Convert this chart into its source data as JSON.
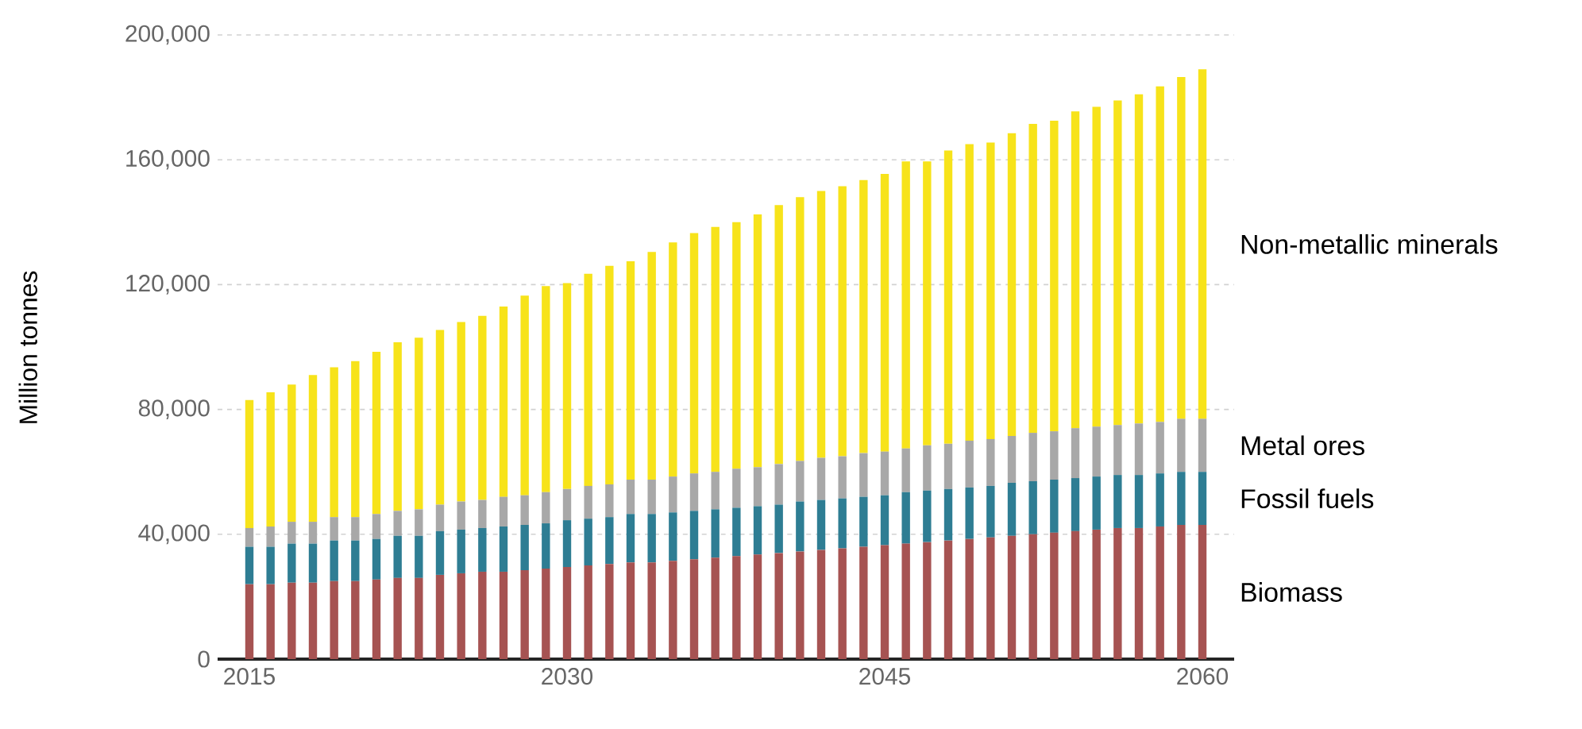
{
  "chart_data": {
    "type": "bar",
    "stacked": true,
    "ylabel": "Million tonnes",
    "x": [
      2015,
      2016,
      2017,
      2018,
      2019,
      2020,
      2021,
      2022,
      2023,
      2024,
      2025,
      2026,
      2027,
      2028,
      2029,
      2030,
      2031,
      2032,
      2033,
      2034,
      2035,
      2036,
      2037,
      2038,
      2039,
      2040,
      2041,
      2042,
      2043,
      2044,
      2045,
      2046,
      2047,
      2048,
      2049,
      2050,
      2051,
      2052,
      2053,
      2054,
      2055,
      2056,
      2057,
      2058,
      2059,
      2060
    ],
    "xlim": [
      2013.5,
      2061.5
    ],
    "xticks": [
      2015,
      2030,
      2045,
      2060
    ],
    "ylim": [
      0,
      200000
    ],
    "yticks": [
      {
        "value": 0,
        "label": "0"
      },
      {
        "value": 40000,
        "label": "40,000"
      },
      {
        "value": 80000,
        "label": "80,000"
      },
      {
        "value": 120000,
        "label": "120,000"
      },
      {
        "value": 160000,
        "label": "160,000"
      },
      {
        "value": 200000,
        "label": "200,000"
      }
    ],
    "grid": "y",
    "legend": false,
    "series": [
      {
        "name": "Biomass",
        "color": "#a65352",
        "values": [
          24000,
          24000,
          24500,
          24500,
          25000,
          25000,
          25500,
          26000,
          26000,
          27000,
          27500,
          28000,
          28000,
          28500,
          29000,
          29500,
          30000,
          30500,
          31000,
          31000,
          31500,
          32000,
          32500,
          33000,
          33500,
          34000,
          34500,
          35000,
          35500,
          36000,
          36500,
          37000,
          37500,
          38000,
          38500,
          39000,
          39500,
          40000,
          40500,
          41000,
          41500,
          42000,
          42000,
          42500,
          43000,
          43000
        ]
      },
      {
        "name": "Fossil fuels",
        "color": "#2e7d93",
        "values": [
          12000,
          12000,
          12500,
          12500,
          13000,
          13000,
          13000,
          13500,
          13500,
          14000,
          14000,
          14000,
          14500,
          14500,
          14500,
          15000,
          15000,
          15000,
          15500,
          15500,
          15500,
          15500,
          15500,
          15500,
          15500,
          15500,
          16000,
          16000,
          16000,
          16000,
          16000,
          16500,
          16500,
          16500,
          16500,
          16500,
          17000,
          17000,
          17000,
          17000,
          17000,
          17000,
          17000,
          17000,
          17000,
          17000
        ]
      },
      {
        "name": "Metal ores",
        "color": "#a8a8a8",
        "values": [
          6000,
          6500,
          7000,
          7000,
          7500,
          7500,
          8000,
          8000,
          8500,
          8500,
          9000,
          9000,
          9500,
          9500,
          10000,
          10000,
          10500,
          10500,
          11000,
          11000,
          11500,
          12000,
          12000,
          12500,
          12500,
          13000,
          13000,
          13500,
          13500,
          14000,
          14000,
          14000,
          14500,
          14500,
          15000,
          15000,
          15000,
          15500,
          15500,
          16000,
          16000,
          16000,
          16500,
          16500,
          17000,
          17000
        ]
      },
      {
        "name": "Non-metallic minerals",
        "color": "#f7e31a",
        "values": [
          41000,
          43000,
          44000,
          47000,
          48000,
          50000,
          52000,
          54000,
          55000,
          56000,
          57500,
          59000,
          61000,
          64000,
          66000,
          66000,
          68000,
          70000,
          70000,
          73000,
          75000,
          77000,
          78500,
          79000,
          81000,
          83000,
          84500,
          85500,
          86500,
          87500,
          89000,
          92000,
          91000,
          94000,
          95000,
          95000,
          97000,
          99000,
          99500,
          101500,
          102500,
          104000,
          105500,
          107500,
          109500,
          112000
        ]
      }
    ]
  }
}
